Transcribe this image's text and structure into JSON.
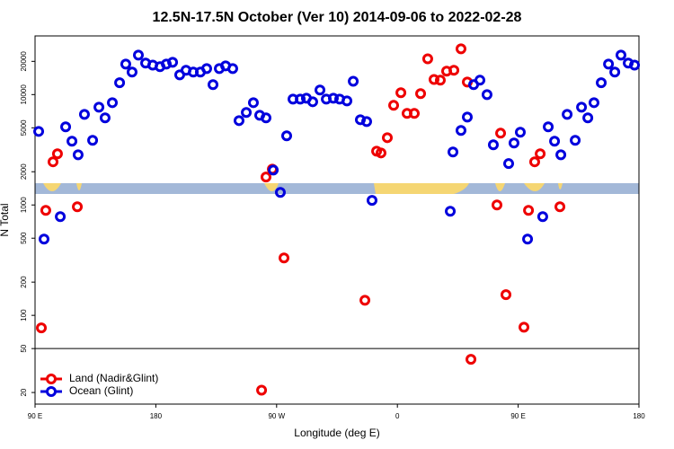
{
  "chart_data": {
    "type": "scatter",
    "title": "12.5N-17.5N October (Ver 10)   2014-09-06 to 2022-02-28",
    "xlabel": "Longitude (deg E)",
    "ylabel": "N Total",
    "log_y": true,
    "legend": "bottom-left",
    "hline": 50,
    "xlim": [
      90,
      540
    ],
    "ylim": [
      15.7,
      34000
    ],
    "xticks": [
      {
        "value": 90,
        "label": "90 E"
      },
      180,
      {
        "value": 270,
        "label": "90 W"
      },
      {
        "value": 360,
        "label": "0"
      },
      {
        "value": 450,
        "label": "90 E"
      },
      {
        "value": 540,
        "label": "180"
      }
    ],
    "yticks": [
      20,
      50,
      100,
      200,
      500,
      1000,
      2000,
      5000,
      10000,
      20000
    ],
    "series": [
      {
        "name": "Land (Nadir&Glint)",
        "color": "#ee0000",
        "x": [
          94.7,
          98.0,
          103.4,
          106.7,
          121.5,
          262.1,
          266.8,
          275.5,
          258.8,
          335.8,
          344.5,
          347.8,
          352.5,
          357.2,
          362.6,
          367.2,
          372.6,
          377.3,
          382.6,
          387.3,
          392.0,
          396.7,
          402.1,
          407.4,
          412.1,
          414.8,
          434.2,
          436.9,
          440.9,
          454.3,
          457.7,
          462.3,
          466.4,
          481.1
        ],
        "values": [
          77,
          894,
          2460,
          2910,
          963,
          1790,
          2110,
          331,
          21,
          137,
          3070,
          2960,
          4070,
          7990,
          10400,
          6750,
          6750,
          10200,
          21100,
          13700,
          13500,
          16300,
          16600,
          26000,
          13000,
          40,
          1000,
          4470,
          154,
          78,
          894,
          2460,
          2910,
          963
        ]
      },
      {
        "name": "Ocean (Glint)",
        "color": "#0000dd",
        "x": [
          92.7,
          96.7,
          108.8,
          112.8,
          117.5,
          122.1,
          126.8,
          132.9,
          137.6,
          142.2,
          147.6,
          153.0,
          157.6,
          162.3,
          167.0,
          172.4,
          177.7,
          183.1,
          187.8,
          192.5,
          197.8,
          202.5,
          207.9,
          213.2,
          217.9,
          222.6,
          227.3,
          232.0,
          237.3,
          242.0,
          247.4,
          252.7,
          257.4,
          262.1,
          267.5,
          272.8,
          277.5,
          282.2,
          287.6,
          292.2,
          296.9,
          302.3,
          307.0,
          312.3,
          317.0,
          322.4,
          327.1,
          332.4,
          337.1,
          341.1,
          399.4,
          401.4,
          407.4,
          412.1,
          416.8,
          421.5,
          426.8,
          431.5,
          442.9,
          446.9,
          451.6,
          457.0,
          468.3,
          472.4,
          477.1,
          481.8,
          486.5,
          492.5,
          497.2,
          501.9,
          506.5,
          511.9,
          517.3,
          522.0,
          526.6,
          532.0,
          536.7
        ],
        "values": [
          4640,
          491,
          784,
          5100,
          3780,
          2850,
          6620,
          3850,
          7690,
          6150,
          8450,
          12800,
          18900,
          16000,
          22800,
          19300,
          18500,
          17900,
          18900,
          19600,
          15100,
          16600,
          16000,
          16000,
          17200,
          12300,
          17200,
          18200,
          17200,
          5810,
          6880,
          8450,
          6500,
          6150,
          2070,
          1300,
          4230,
          9100,
          9100,
          9270,
          8610,
          11000,
          9100,
          9270,
          9100,
          8770,
          13200,
          5920,
          5700,
          1100,
          877,
          3020,
          4730,
          6260,
          12300,
          13500,
          10000,
          3510,
          2370,
          3640,
          4560,
          491,
          784,
          5100,
          3780,
          2850,
          6620,
          3850,
          7690,
          6150,
          8450,
          12800,
          18900,
          16000,
          22800,
          19300,
          18500
        ]
      }
    ]
  }
}
